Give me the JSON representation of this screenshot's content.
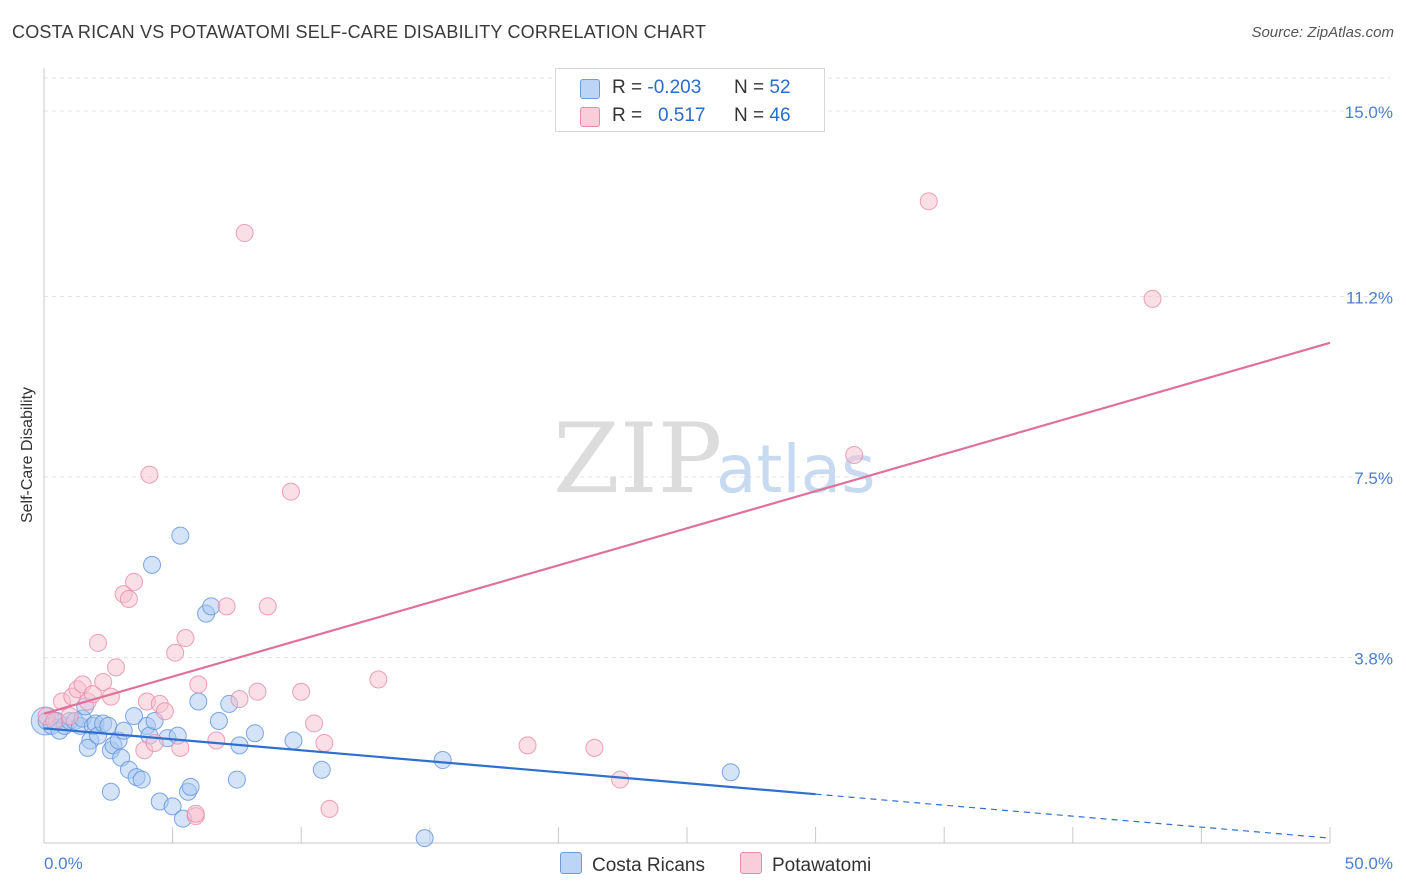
{
  "title": "COSTA RICAN VS POTAWATOMI SELF-CARE DISABILITY CORRELATION CHART",
  "source": "Source: ZipAtlas.com",
  "watermark": {
    "part1": "ZIP",
    "part2": "atlas"
  },
  "colors": {
    "blue_fill": "#a9c8f2",
    "blue_stroke": "#5f93dc",
    "blue_line": "#2f6fd0",
    "pink_fill": "#f7bfd0",
    "pink_stroke": "#e98aa9",
    "pink_line": "#e0709a",
    "grid": "#e3e3e3",
    "tick": "#4a7fd0"
  },
  "legend": {
    "rows": [
      {
        "r_label": "R =",
        "r_value": "-0.203",
        "n_label": "N =",
        "n_value": "52"
      },
      {
        "r_label": "R =",
        "r_value": "0.517",
        "n_label": "N =",
        "n_value": "46"
      }
    ]
  },
  "bottom_legend": {
    "series1": "Costa Ricans",
    "series2": "Potawatomi"
  },
  "chart_data": {
    "type": "scatter",
    "title": "COSTA RICAN VS POTAWATOMI SELF-CARE DISABILITY CORRELATION CHART",
    "xlabel": "",
    "ylabel": "Self-Care Disability",
    "xlim": [
      0,
      50
    ],
    "ylim": [
      0,
      15.8
    ],
    "x_ticks": [
      {
        "value": 0,
        "label": "0.0%"
      },
      {
        "value": 50,
        "label": "50.0%"
      }
    ],
    "y_ticks": [
      {
        "value": 3.8,
        "label": "3.8%"
      },
      {
        "value": 7.5,
        "label": "7.5%"
      },
      {
        "value": 11.2,
        "label": "11.2%"
      },
      {
        "value": 15.0,
        "label": "15.0%"
      }
    ],
    "x_minor_ticks": [
      5,
      10,
      15,
      20,
      25,
      30,
      35,
      40,
      45
    ],
    "series": [
      {
        "name": "Costa Ricans",
        "r": -0.203,
        "n": 52,
        "points": [
          [
            0.1,
            2.5
          ],
          [
            0.3,
            2.4
          ],
          [
            0.5,
            2.5
          ],
          [
            0.6,
            2.3
          ],
          [
            0.8,
            2.4
          ],
          [
            1.0,
            2.5
          ],
          [
            1.2,
            2.5
          ],
          [
            1.4,
            2.4
          ],
          [
            1.5,
            2.55
          ],
          [
            1.8,
            2.1
          ],
          [
            1.6,
            2.8
          ],
          [
            1.7,
            1.95
          ],
          [
            1.9,
            2.4
          ],
          [
            2.0,
            2.45
          ],
          [
            2.1,
            2.2
          ],
          [
            2.3,
            2.45
          ],
          [
            2.5,
            2.4
          ],
          [
            2.6,
            1.9
          ],
          [
            2.7,
            2.0
          ],
          [
            2.9,
            2.1
          ],
          [
            3.0,
            1.75
          ],
          [
            3.1,
            2.3
          ],
          [
            3.3,
            1.5
          ],
          [
            3.5,
            2.6
          ],
          [
            3.6,
            1.35
          ],
          [
            3.8,
            1.3
          ],
          [
            4.0,
            2.4
          ],
          [
            4.1,
            2.2
          ],
          [
            4.3,
            2.5
          ],
          [
            4.5,
            0.85
          ],
          [
            4.8,
            2.15
          ],
          [
            5.0,
            0.75
          ],
          [
            5.2,
            2.2
          ],
          [
            5.4,
            0.5
          ],
          [
            5.6,
            1.05
          ],
          [
            5.7,
            1.15
          ],
          [
            6.0,
            2.9
          ],
          [
            6.3,
            4.7
          ],
          [
            6.5,
            4.85
          ],
          [
            6.8,
            2.5
          ],
          [
            7.2,
            2.85
          ],
          [
            7.5,
            1.3
          ],
          [
            7.6,
            2.0
          ],
          [
            8.2,
            2.25
          ],
          [
            9.7,
            2.1
          ],
          [
            10.8,
            1.5
          ],
          [
            14.8,
            0.1
          ],
          [
            15.5,
            1.7
          ],
          [
            26.7,
            1.45
          ],
          [
            5.3,
            6.3
          ],
          [
            4.2,
            5.7
          ],
          [
            2.6,
            1.05
          ]
        ]
      },
      {
        "name": "Potawatomi",
        "r": 0.517,
        "n": 46,
        "points": [
          [
            0.1,
            2.6
          ],
          [
            0.4,
            2.5
          ],
          [
            0.7,
            2.9
          ],
          [
            1.0,
            2.6
          ],
          [
            1.1,
            3.0
          ],
          [
            1.3,
            3.15
          ],
          [
            1.5,
            3.25
          ],
          [
            1.7,
            2.9
          ],
          [
            1.9,
            3.05
          ],
          [
            2.1,
            4.1
          ],
          [
            2.3,
            3.3
          ],
          [
            2.6,
            3.0
          ],
          [
            2.8,
            3.6
          ],
          [
            3.1,
            5.1
          ],
          [
            3.3,
            5.0
          ],
          [
            3.5,
            5.35
          ],
          [
            3.9,
            1.9
          ],
          [
            4.0,
            2.9
          ],
          [
            4.1,
            7.55
          ],
          [
            4.3,
            2.05
          ],
          [
            4.5,
            2.85
          ],
          [
            4.7,
            2.7
          ],
          [
            5.1,
            3.9
          ],
          [
            5.3,
            1.95
          ],
          [
            5.5,
            4.2
          ],
          [
            5.9,
            0.55
          ],
          [
            6.0,
            3.25
          ],
          [
            6.7,
            2.1
          ],
          [
            7.1,
            4.85
          ],
          [
            7.6,
            2.95
          ],
          [
            7.8,
            12.5
          ],
          [
            8.3,
            3.1
          ],
          [
            8.7,
            4.85
          ],
          [
            9.6,
            7.2
          ],
          [
            10.0,
            3.1
          ],
          [
            10.5,
            2.45
          ],
          [
            10.9,
            2.05
          ],
          [
            11.1,
            0.7
          ],
          [
            13.0,
            3.35
          ],
          [
            18.8,
            2.0
          ],
          [
            21.4,
            1.95
          ],
          [
            22.4,
            1.3
          ],
          [
            31.5,
            7.95
          ],
          [
            34.4,
            13.15
          ],
          [
            43.1,
            11.15
          ],
          [
            5.9,
            0.6
          ]
        ]
      }
    ],
    "trend_lines": [
      {
        "series": "Costa Ricans",
        "solid": {
          "from": [
            0,
            2.35
          ],
          "to": [
            30,
            1.0
          ]
        },
        "dashed": {
          "from": [
            30,
            1.0
          ],
          "to": [
            50,
            0.1
          ]
        }
      },
      {
        "series": "Potawatomi",
        "solid": {
          "from": [
            0,
            2.65
          ],
          "to": [
            50,
            10.25
          ]
        }
      }
    ]
  }
}
